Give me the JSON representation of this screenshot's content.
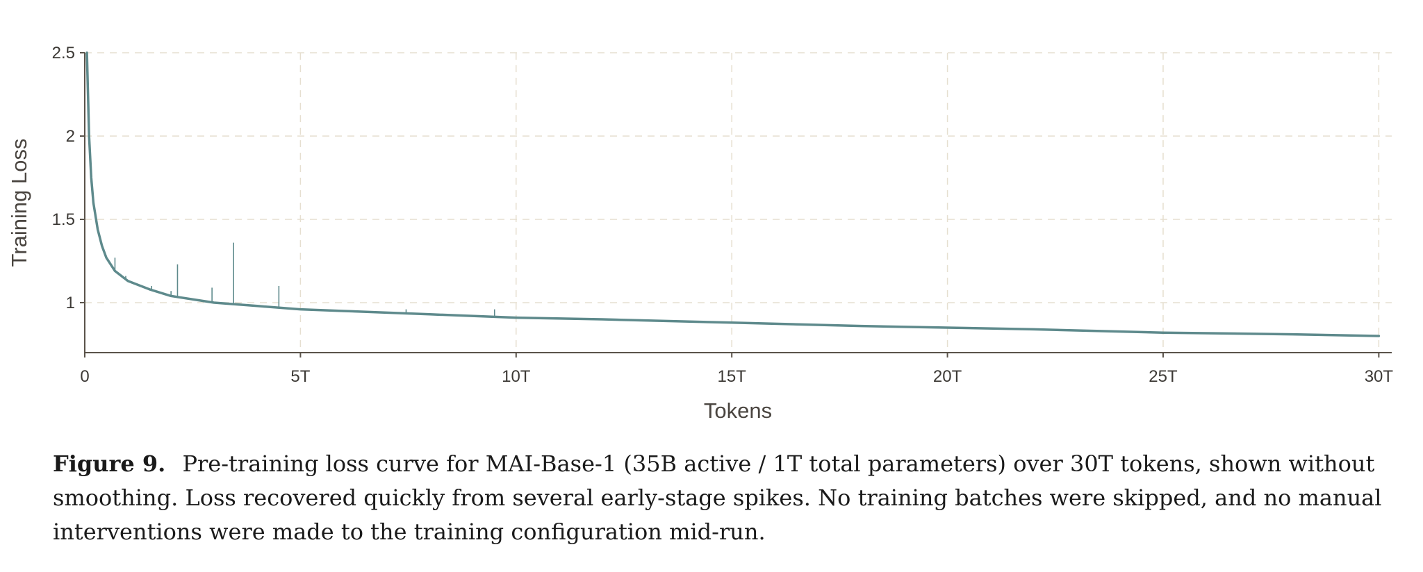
{
  "chart_data": {
    "type": "line",
    "title": "",
    "xlabel": "Tokens",
    "ylabel": "Training Loss",
    "xlim": [
      0,
      30.3
    ],
    "ylim": [
      0.7,
      2.5
    ],
    "x_unit": "trillion tokens",
    "xticks": [
      {
        "value": 0,
        "label": "0"
      },
      {
        "value": 5,
        "label": "5T"
      },
      {
        "value": 10,
        "label": "10T"
      },
      {
        "value": 15,
        "label": "15T"
      },
      {
        "value": 20,
        "label": "20T"
      },
      {
        "value": 25,
        "label": "25T"
      },
      {
        "value": 30,
        "label": "30T"
      }
    ],
    "yticks": [
      {
        "value": 1,
        "label": "1"
      },
      {
        "value": 1.5,
        "label": "1.5"
      },
      {
        "value": 2,
        "label": "2"
      },
      {
        "value": 2.5,
        "label": "2.5"
      }
    ],
    "grid": true,
    "series": [
      {
        "x": [
          0.05,
          0.1,
          0.15,
          0.2,
          0.3,
          0.4,
          0.5,
          0.7,
          1.0,
          1.5,
          2.0,
          3.0,
          4.0,
          5.0,
          6.0,
          8.0,
          10.0,
          12.0,
          15.0,
          18.0,
          20.0,
          22.0,
          25.0,
          28.0,
          30.0
        ],
        "y": [
          2.5,
          2.0,
          1.75,
          1.6,
          1.44,
          1.34,
          1.27,
          1.19,
          1.13,
          1.08,
          1.04,
          1.0,
          0.98,
          0.96,
          0.95,
          0.93,
          0.91,
          0.9,
          0.88,
          0.86,
          0.85,
          0.84,
          0.82,
          0.81,
          0.8
        ]
      }
    ],
    "spikes": [
      {
        "x": 0.7,
        "y": 1.27
      },
      {
        "x": 0.95,
        "y": 1.16
      },
      {
        "x": 1.55,
        "y": 1.1
      },
      {
        "x": 2.0,
        "y": 1.07
      },
      {
        "x": 2.15,
        "y": 1.23
      },
      {
        "x": 2.95,
        "y": 1.09
      },
      {
        "x": 3.45,
        "y": 1.36
      },
      {
        "x": 4.5,
        "y": 1.1
      },
      {
        "x": 7.45,
        "y": 0.96
      },
      {
        "x": 9.5,
        "y": 0.96
      }
    ],
    "line_color": "#5e8a8c",
    "grid_color": "#e6dfd0",
    "axis_color": "#5a534a"
  },
  "caption": {
    "label": "Figure 9.",
    "text": "Pre-training loss curve for MAI-Base-1 (35B active / 1T total parameters) over 30T tokens, shown without smoothing. Loss recovered quickly from several early-stage spikes. No training batches were skipped, and no manual interventions were made to the training configuration mid-run."
  }
}
